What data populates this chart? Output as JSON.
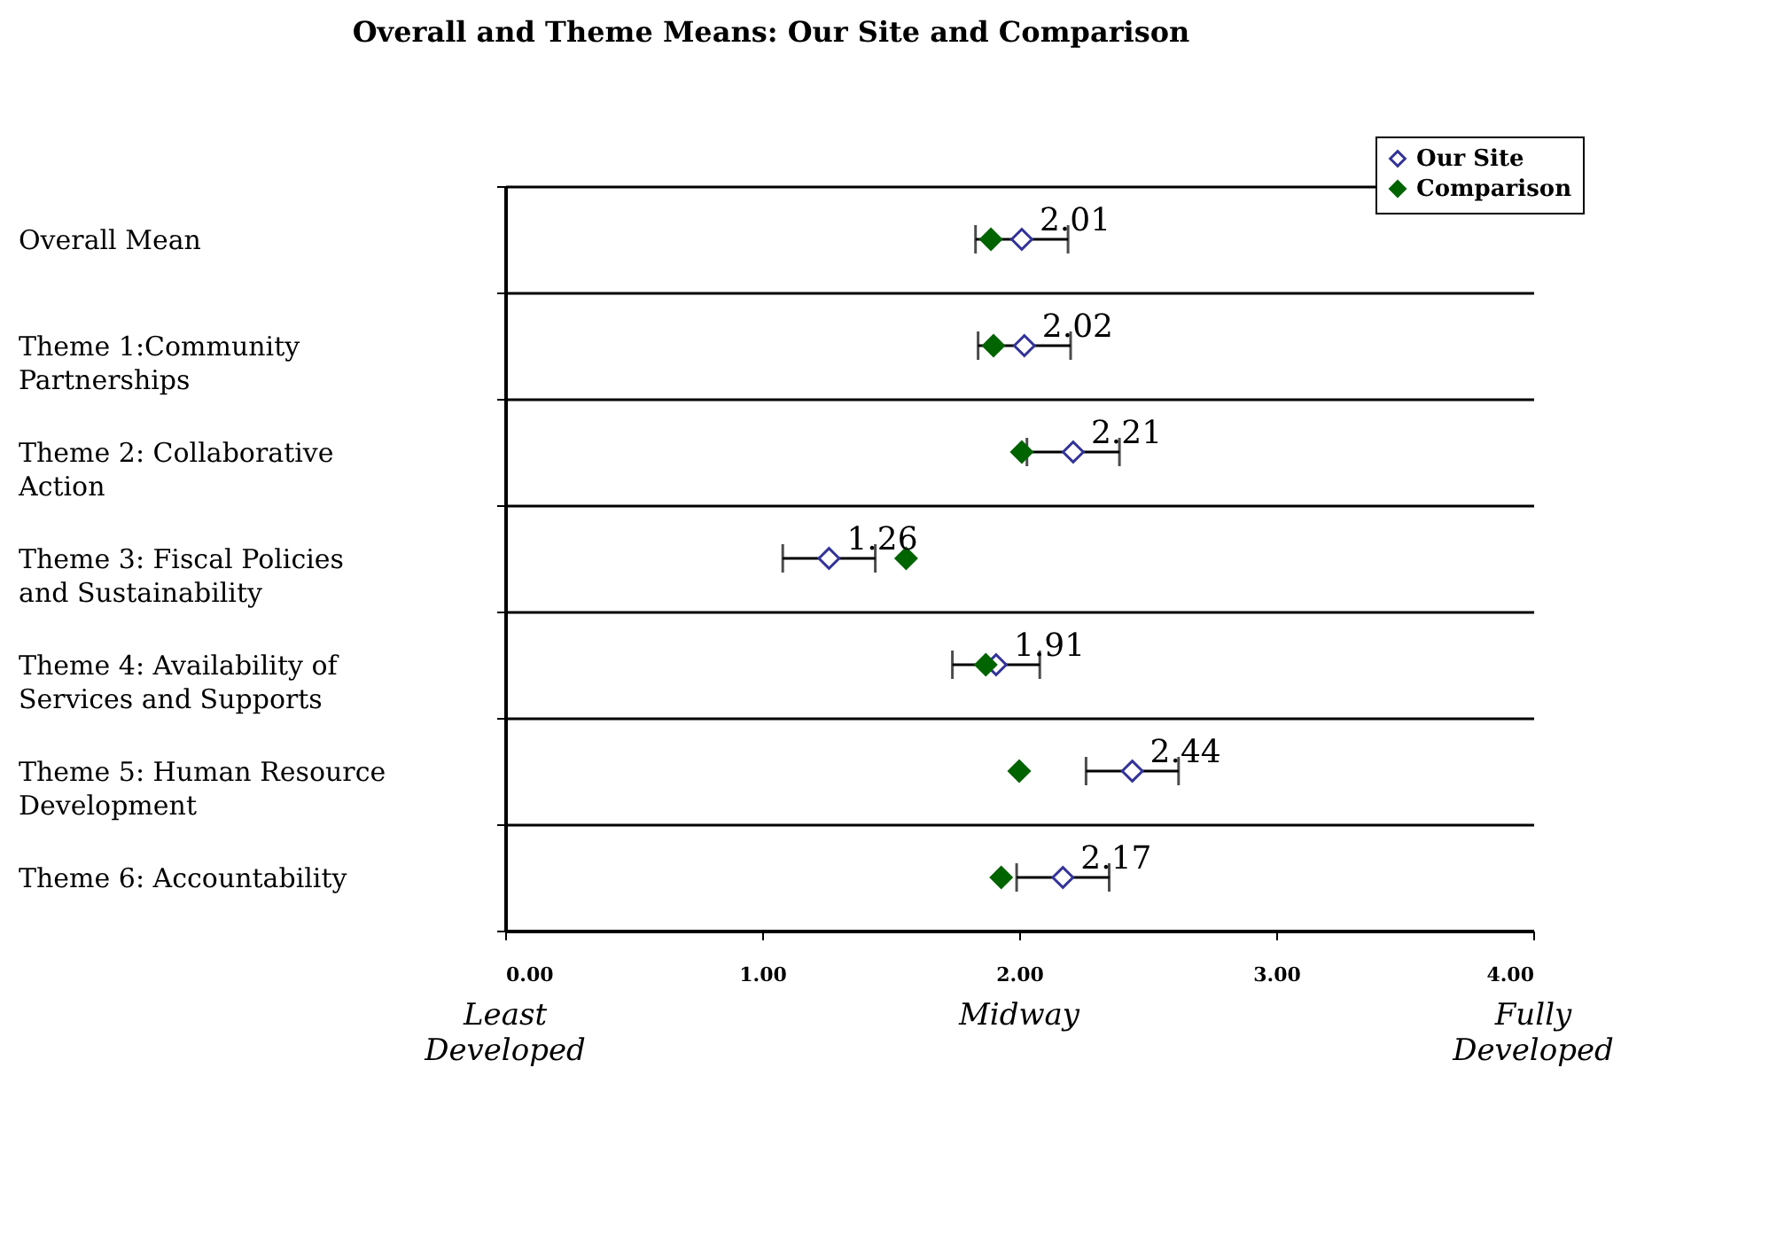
{
  "chart_data": {
    "type": "scatter",
    "title": "Overall and Theme Means: Our Site and Comparison",
    "categories": [
      "Overall Mean",
      "Theme 1:Community Partnerships",
      "Theme 2: Collaborative Action",
      "Theme 3: Fiscal Policies and Sustainability",
      "Theme 4: Availability of Services and Supports",
      "Theme 5: Human Resource Development",
      "Theme 6: Accountability"
    ],
    "series": [
      {
        "name": "Our Site",
        "color": "#333399",
        "values": [
          2.01,
          2.02,
          2.21,
          1.26,
          1.91,
          2.44,
          2.17
        ],
        "errors": [
          0.18,
          0.18,
          0.18,
          0.18,
          0.17,
          0.18,
          0.18
        ],
        "value_labels": [
          "2.01",
          "2.02",
          "2.21",
          "1.26",
          "1.91",
          "2.44",
          "2.17"
        ]
      },
      {
        "name": "Comparison",
        "color": "#006400",
        "values": [
          1.89,
          1.9,
          2.01,
          1.56,
          1.87,
          2.0,
          1.93
        ]
      }
    ],
    "orientation": "horizontal",
    "xlim": [
      0,
      4
    ],
    "xticks": [
      {
        "value": 0,
        "label": "0.00"
      },
      {
        "value": 1,
        "label": "1.00"
      },
      {
        "value": 2,
        "label": "2.00"
      },
      {
        "value": 3,
        "label": "3.00"
      },
      {
        "value": 4,
        "label": "4.00"
      }
    ],
    "grid": "y",
    "legend": "top right",
    "marker": "diamond",
    "annotations": [
      "Least Developed",
      "Midway",
      "Fully Developed"
    ]
  }
}
